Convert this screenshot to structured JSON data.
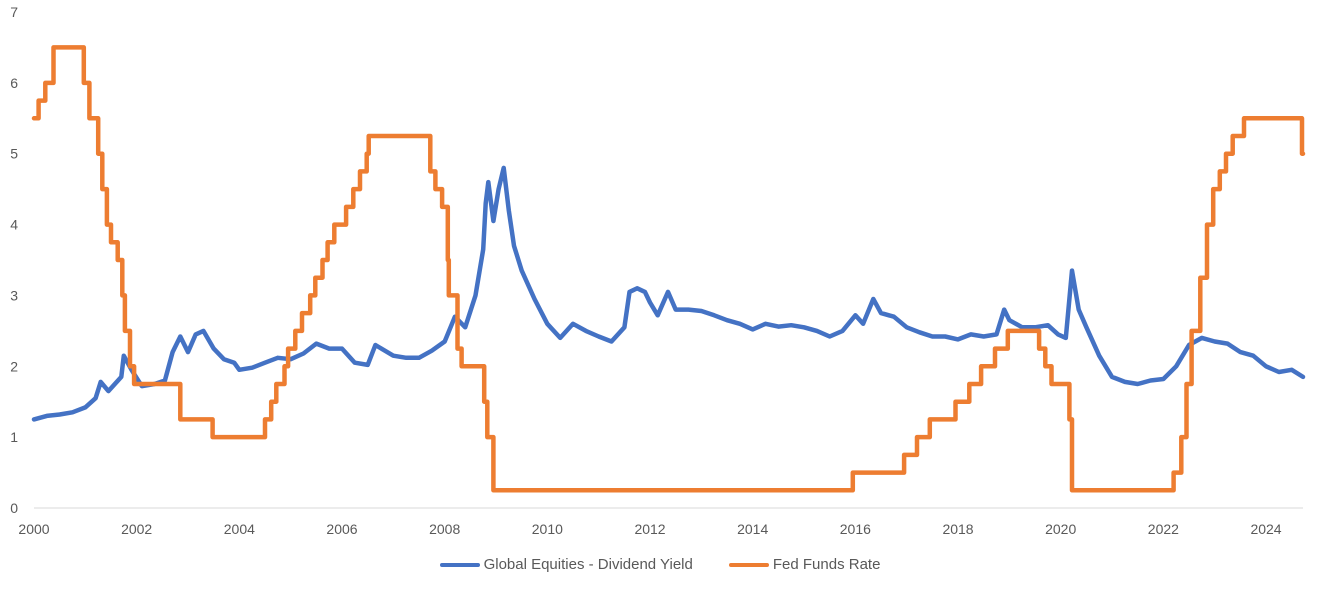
{
  "chart_data": {
    "type": "line",
    "title": "",
    "xlabel": "",
    "ylabel": "",
    "xlim": [
      2000,
      2024.72
    ],
    "ylim": [
      0,
      7
    ],
    "x_ticks": [
      "2000",
      "2002",
      "2004",
      "2006",
      "2008",
      "2010",
      "2012",
      "2014",
      "2016",
      "2018",
      "2020",
      "2022",
      "2024"
    ],
    "y_ticks": [
      "0",
      "1",
      "2",
      "3",
      "4",
      "5",
      "6",
      "7"
    ],
    "grid": false,
    "legend_position": "bottom",
    "series": [
      {
        "name": "Global Equities - Dividend Yield",
        "color": "#4472C4",
        "style": "line",
        "points": [
          [
            2000.0,
            1.25
          ],
          [
            2000.25,
            1.3
          ],
          [
            2000.5,
            1.32
          ],
          [
            2000.75,
            1.35
          ],
          [
            2001.0,
            1.42
          ],
          [
            2001.2,
            1.55
          ],
          [
            2001.3,
            1.78
          ],
          [
            2001.45,
            1.65
          ],
          [
            2001.7,
            1.85
          ],
          [
            2001.75,
            2.15
          ],
          [
            2001.9,
            1.95
          ],
          [
            2002.1,
            1.72
          ],
          [
            2002.35,
            1.75
          ],
          [
            2002.55,
            1.8
          ],
          [
            2002.7,
            2.2
          ],
          [
            2002.85,
            2.42
          ],
          [
            2003.0,
            2.2
          ],
          [
            2003.15,
            2.45
          ],
          [
            2003.3,
            2.5
          ],
          [
            2003.5,
            2.25
          ],
          [
            2003.7,
            2.1
          ],
          [
            2003.9,
            2.05
          ],
          [
            2004.0,
            1.95
          ],
          [
            2004.25,
            1.98
          ],
          [
            2004.5,
            2.05
          ],
          [
            2004.75,
            2.12
          ],
          [
            2005.0,
            2.1
          ],
          [
            2005.25,
            2.18
          ],
          [
            2005.5,
            2.32
          ],
          [
            2005.75,
            2.25
          ],
          [
            2006.0,
            2.25
          ],
          [
            2006.25,
            2.05
          ],
          [
            2006.5,
            2.02
          ],
          [
            2006.65,
            2.3
          ],
          [
            2007.0,
            2.15
          ],
          [
            2007.25,
            2.12
          ],
          [
            2007.5,
            2.12
          ],
          [
            2007.75,
            2.22
          ],
          [
            2008.0,
            2.35
          ],
          [
            2008.2,
            2.7
          ],
          [
            2008.4,
            2.55
          ],
          [
            2008.6,
            3.0
          ],
          [
            2008.75,
            3.65
          ],
          [
            2008.8,
            4.3
          ],
          [
            2008.85,
            4.6
          ],
          [
            2008.95,
            4.05
          ],
          [
            2009.05,
            4.5
          ],
          [
            2009.15,
            4.8
          ],
          [
            2009.25,
            4.2
          ],
          [
            2009.35,
            3.7
          ],
          [
            2009.5,
            3.35
          ],
          [
            2009.75,
            2.95
          ],
          [
            2010.0,
            2.6
          ],
          [
            2010.25,
            2.4
          ],
          [
            2010.5,
            2.6
          ],
          [
            2010.75,
            2.5
          ],
          [
            2011.0,
            2.42
          ],
          [
            2011.25,
            2.35
          ],
          [
            2011.5,
            2.55
          ],
          [
            2011.6,
            3.05
          ],
          [
            2011.75,
            3.1
          ],
          [
            2011.9,
            3.05
          ],
          [
            2012.0,
            2.9
          ],
          [
            2012.15,
            2.72
          ],
          [
            2012.35,
            3.05
          ],
          [
            2012.5,
            2.8
          ],
          [
            2012.75,
            2.8
          ],
          [
            2013.0,
            2.78
          ],
          [
            2013.25,
            2.72
          ],
          [
            2013.5,
            2.65
          ],
          [
            2013.75,
            2.6
          ],
          [
            2014.0,
            2.52
          ],
          [
            2014.25,
            2.6
          ],
          [
            2014.5,
            2.56
          ],
          [
            2014.75,
            2.58
          ],
          [
            2015.0,
            2.55
          ],
          [
            2015.25,
            2.5
          ],
          [
            2015.5,
            2.42
          ],
          [
            2015.75,
            2.5
          ],
          [
            2016.0,
            2.72
          ],
          [
            2016.15,
            2.6
          ],
          [
            2016.35,
            2.95
          ],
          [
            2016.5,
            2.75
          ],
          [
            2016.75,
            2.7
          ],
          [
            2017.0,
            2.55
          ],
          [
            2017.25,
            2.48
          ],
          [
            2017.5,
            2.42
          ],
          [
            2017.75,
            2.42
          ],
          [
            2018.0,
            2.38
          ],
          [
            2018.25,
            2.45
          ],
          [
            2018.5,
            2.42
          ],
          [
            2018.75,
            2.45
          ],
          [
            2018.9,
            2.8
          ],
          [
            2019.0,
            2.65
          ],
          [
            2019.25,
            2.55
          ],
          [
            2019.5,
            2.55
          ],
          [
            2019.75,
            2.58
          ],
          [
            2019.95,
            2.45
          ],
          [
            2020.1,
            2.4
          ],
          [
            2020.22,
            3.35
          ],
          [
            2020.35,
            2.8
          ],
          [
            2020.5,
            2.55
          ],
          [
            2020.75,
            2.15
          ],
          [
            2021.0,
            1.85
          ],
          [
            2021.25,
            1.78
          ],
          [
            2021.5,
            1.75
          ],
          [
            2021.75,
            1.8
          ],
          [
            2022.0,
            1.82
          ],
          [
            2022.25,
            2.0
          ],
          [
            2022.5,
            2.3
          ],
          [
            2022.75,
            2.4
          ],
          [
            2023.0,
            2.35
          ],
          [
            2023.25,
            2.32
          ],
          [
            2023.5,
            2.2
          ],
          [
            2023.75,
            2.15
          ],
          [
            2024.0,
            2.0
          ],
          [
            2024.25,
            1.92
          ],
          [
            2024.5,
            1.95
          ],
          [
            2024.72,
            1.85
          ]
        ]
      },
      {
        "name": "Fed Funds Rate",
        "color": "#ED7D31",
        "style": "step",
        "points": [
          [
            2000.0,
            5.5
          ],
          [
            2000.09,
            5.75
          ],
          [
            2000.22,
            6.0
          ],
          [
            2000.38,
            6.5
          ],
          [
            2000.97,
            6.0
          ],
          [
            2001.08,
            5.5
          ],
          [
            2001.25,
            5.0
          ],
          [
            2001.33,
            4.5
          ],
          [
            2001.42,
            4.0
          ],
          [
            2001.5,
            3.75
          ],
          [
            2001.63,
            3.5
          ],
          [
            2001.72,
            3.0
          ],
          [
            2001.77,
            2.5
          ],
          [
            2001.87,
            2.0
          ],
          [
            2001.95,
            1.75
          ],
          [
            2002.85,
            1.25
          ],
          [
            2003.48,
            1.0
          ],
          [
            2004.5,
            1.25
          ],
          [
            2004.62,
            1.5
          ],
          [
            2004.72,
            1.75
          ],
          [
            2004.88,
            2.0
          ],
          [
            2004.95,
            2.25
          ],
          [
            2005.09,
            2.5
          ],
          [
            2005.22,
            2.75
          ],
          [
            2005.38,
            3.0
          ],
          [
            2005.48,
            3.25
          ],
          [
            2005.62,
            3.5
          ],
          [
            2005.72,
            3.75
          ],
          [
            2005.85,
            4.0
          ],
          [
            2006.08,
            4.25
          ],
          [
            2006.22,
            4.5
          ],
          [
            2006.35,
            4.75
          ],
          [
            2006.48,
            5.0
          ],
          [
            2006.52,
            5.25
          ],
          [
            2007.72,
            4.75
          ],
          [
            2007.82,
            4.5
          ],
          [
            2007.95,
            4.25
          ],
          [
            2008.06,
            3.5
          ],
          [
            2008.08,
            3.0
          ],
          [
            2008.25,
            2.25
          ],
          [
            2008.33,
            2.0
          ],
          [
            2008.77,
            1.5
          ],
          [
            2008.83,
            1.0
          ],
          [
            2008.95,
            0.25
          ],
          [
            2015.95,
            0.5
          ],
          [
            2016.95,
            0.75
          ],
          [
            2017.2,
            1.0
          ],
          [
            2017.45,
            1.25
          ],
          [
            2017.95,
            1.5
          ],
          [
            2018.22,
            1.75
          ],
          [
            2018.45,
            2.0
          ],
          [
            2018.72,
            2.25
          ],
          [
            2018.97,
            2.5
          ],
          [
            2019.58,
            2.25
          ],
          [
            2019.7,
            2.0
          ],
          [
            2019.82,
            1.75
          ],
          [
            2020.17,
            1.25
          ],
          [
            2020.22,
            0.25
          ],
          [
            2022.2,
            0.5
          ],
          [
            2022.35,
            1.0
          ],
          [
            2022.45,
            1.75
          ],
          [
            2022.55,
            2.5
          ],
          [
            2022.72,
            3.25
          ],
          [
            2022.85,
            4.0
          ],
          [
            2022.97,
            4.5
          ],
          [
            2023.1,
            4.75
          ],
          [
            2023.22,
            5.0
          ],
          [
            2023.35,
            5.25
          ],
          [
            2023.57,
            5.5
          ],
          [
            2024.7,
            5.0
          ]
        ]
      }
    ]
  },
  "legend": {
    "items": [
      {
        "label": "Global Equities - Dividend Yield",
        "color": "#4472C4"
      },
      {
        "label": "Fed Funds Rate",
        "color": "#ED7D31"
      }
    ]
  }
}
